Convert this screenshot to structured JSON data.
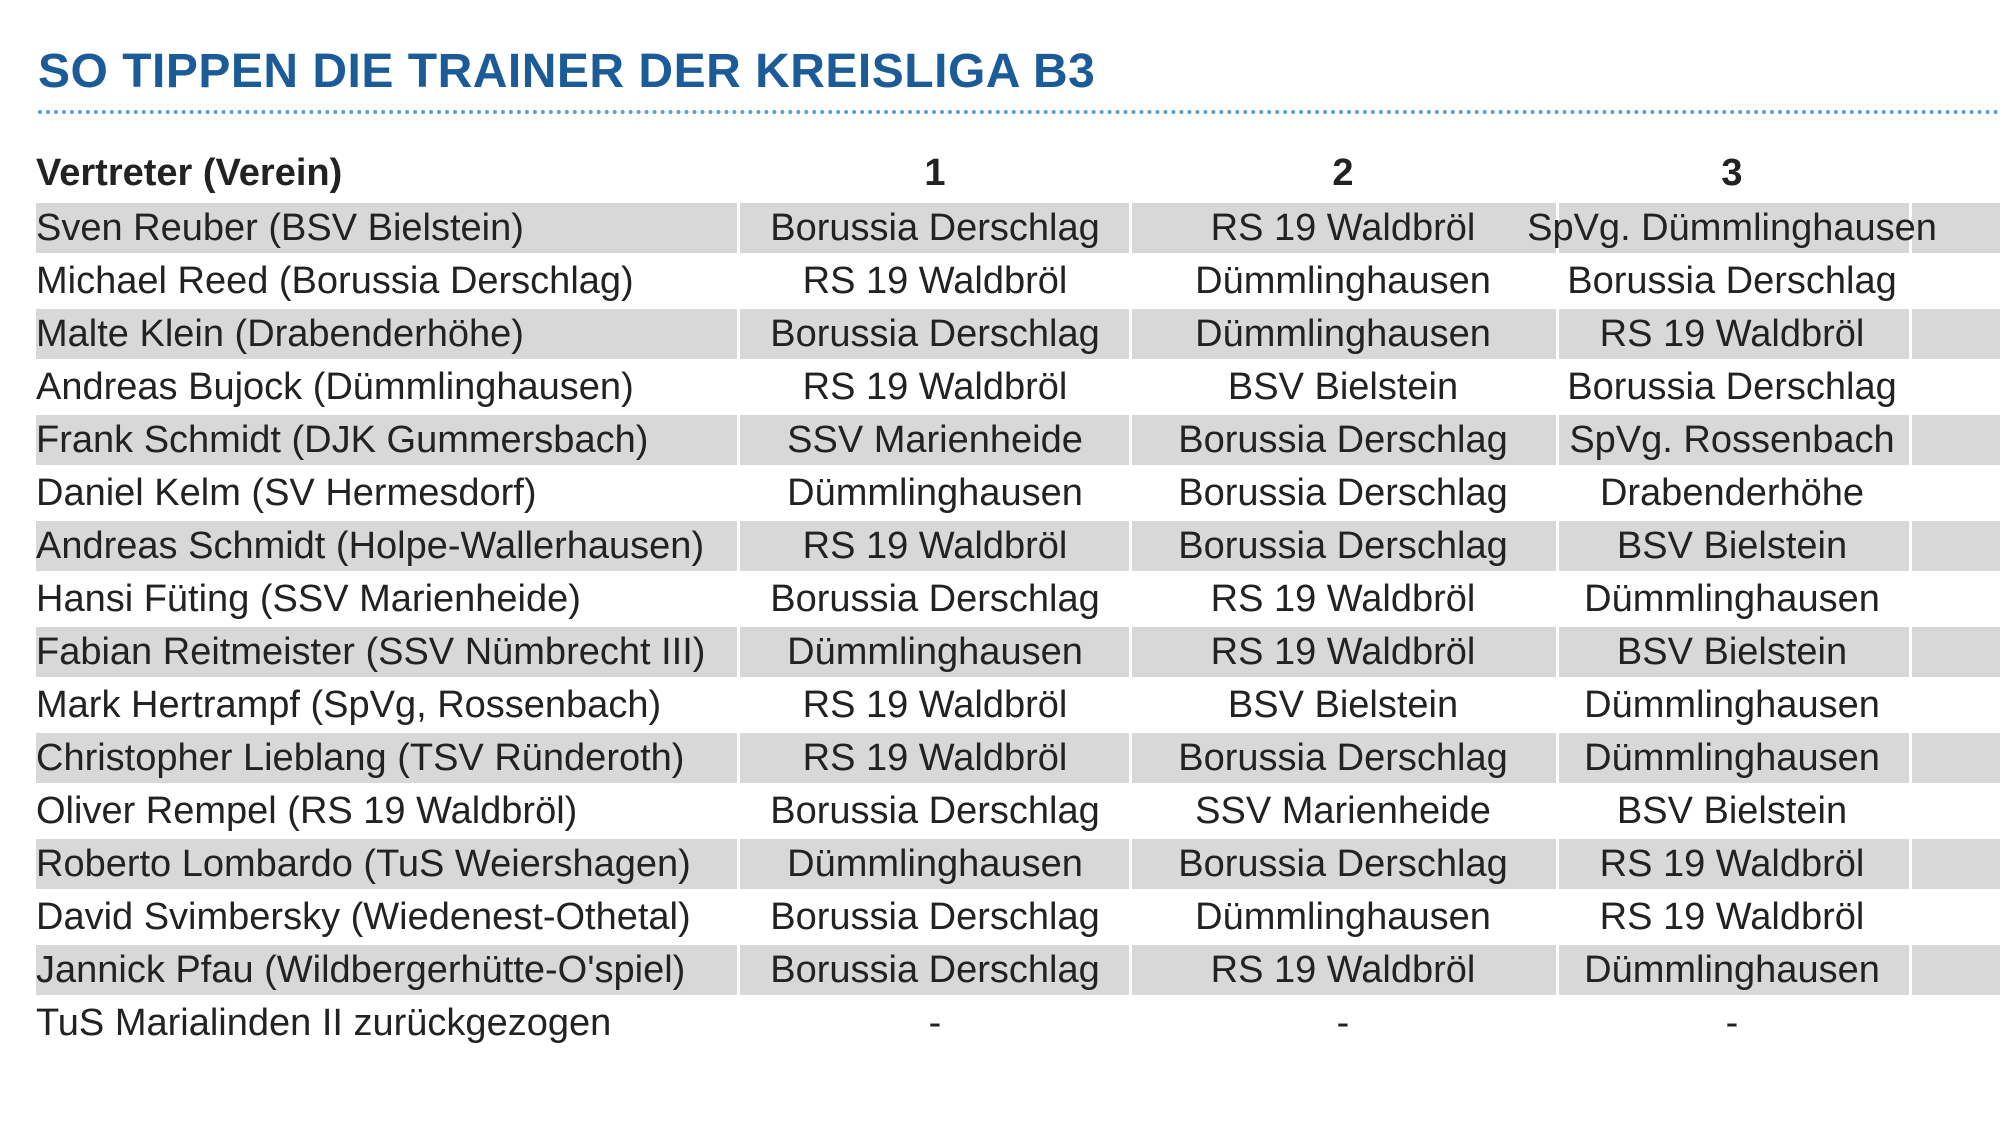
{
  "header": {
    "title": "SO TIPPEN DIE TRAINER DER KREISLIGA B3"
  },
  "table": {
    "columns": [
      "Vertreter (Verein)",
      "1",
      "2",
      "3"
    ],
    "rows": [
      [
        "Sven Reuber (BSV Bielstein)",
        "Borussia Derschlag",
        "RS 19 Waldbröl",
        "SpVg. Dümmlinghausen"
      ],
      [
        "Michael Reed (Borussia Derschlag)",
        "RS 19 Waldbröl",
        "Dümmlinghausen",
        "Borussia Derschlag"
      ],
      [
        "Malte Klein (Drabenderhöhe)",
        "Borussia Derschlag",
        "Dümmlinghausen",
        "RS 19 Waldbröl"
      ],
      [
        "Andreas Bujock (Dümmlinghausen)",
        "RS 19 Waldbröl",
        "BSV Bielstein",
        "Borussia Derschlag"
      ],
      [
        "Frank Schmidt (DJK Gummersbach)",
        "SSV Marienheide",
        "Borussia Derschlag",
        "SpVg. Rossenbach"
      ],
      [
        "Daniel Kelm (SV Hermesdorf)",
        "Dümmlinghausen",
        "Borussia Derschlag",
        "Drabenderhöhe"
      ],
      [
        "Andreas Schmidt (Holpe-Wallerhausen)",
        "RS 19 Waldbröl",
        "Borussia Derschlag",
        "BSV Bielstein"
      ],
      [
        "Hansi Füting (SSV Marienheide)",
        "Borussia Derschlag",
        "RS 19 Waldbröl",
        "Dümmlinghausen"
      ],
      [
        "Fabian Reitmeister (SSV Nümbrecht III)",
        "Dümmlinghausen",
        "RS 19 Waldbröl",
        "BSV Bielstein"
      ],
      [
        "Mark Hertrampf (SpVg, Rossenbach)",
        "RS 19 Waldbröl",
        "BSV Bielstein",
        "Dümmlinghausen"
      ],
      [
        "Christopher Lieblang (TSV Ründeroth)",
        "RS 19 Waldbröl",
        "Borussia Derschlag",
        "Dümmlinghausen"
      ],
      [
        "Oliver Rempel (RS 19 Waldbröl)",
        "Borussia Derschlag",
        "SSV Marienheide",
        "BSV Bielstein"
      ],
      [
        "Roberto Lombardo (TuS Weiershagen)",
        "Dümmlinghausen",
        "Borussia Derschlag",
        "RS 19 Waldbröl"
      ],
      [
        "David Svimbersky (Wiedenest-Othetal)",
        "Borussia Derschlag",
        "Dümmlinghausen",
        "RS 19 Waldbröl"
      ],
      [
        "Jannick Pfau (Wildbergerhütte-O'spiel)",
        "Borussia Derschlag",
        "RS 19 Waldbröl",
        "Dümmlinghausen"
      ],
      [
        "TuS Marialinden II zurückgezogen",
        "-",
        "-",
        "-"
      ]
    ]
  }
}
